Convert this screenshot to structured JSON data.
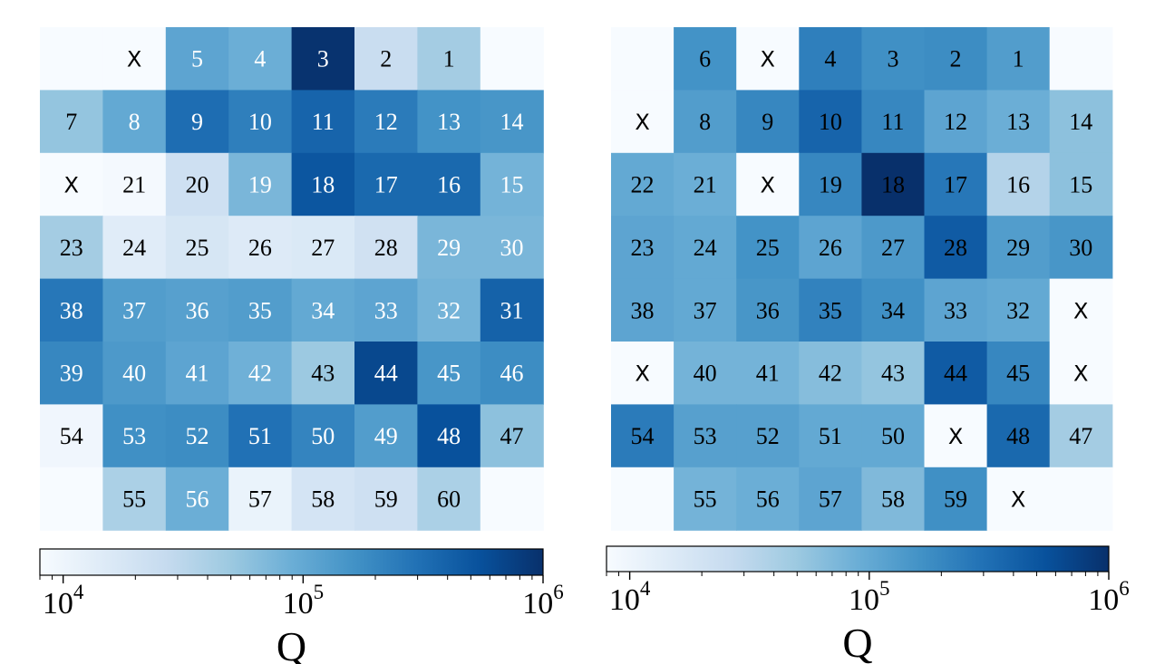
{
  "colors": {
    "cmap": [
      "#f7fbff",
      "#deebf7",
      "#c6dbef",
      "#9ecae1",
      "#6baed6",
      "#4292c6",
      "#2171b5",
      "#08519c",
      "#08306b"
    ],
    "text_dark": "#000000",
    "text_light": "#ffffff"
  },
  "chart_data": [
    {
      "type": "heatmap",
      "scale": "log",
      "colorbar_label": "Q",
      "colorbar_range": [
        8000,
        1000000
      ],
      "colorbar_ticks": [
        {
          "value": 10000,
          "base": "10",
          "exp": "4"
        },
        {
          "value": 100000,
          "base": "10",
          "exp": "5"
        },
        {
          "value": 1000000,
          "base": "10",
          "exp": "6"
        }
      ],
      "rows": 8,
      "cols": 8,
      "cells": [
        [
          null,
          {
            "t": "X",
            "q": null
          },
          {
            "t": "5",
            "q": 110000
          },
          {
            "t": "4",
            "q": 90000
          },
          {
            "t": "3",
            "q": 950000
          },
          {
            "t": "2",
            "q": 25000
          },
          {
            "t": "1",
            "q": 45000
          },
          null
        ],
        [
          {
            "t": "7",
            "q": 55000
          },
          {
            "t": "8",
            "q": 100000
          },
          {
            "t": "9",
            "q": 320000
          },
          {
            "t": "10",
            "q": 230000
          },
          {
            "t": "11",
            "q": 380000
          },
          {
            "t": "12",
            "q": 250000
          },
          {
            "t": "13",
            "q": 160000
          },
          {
            "t": "14",
            "q": 150000
          }
        ],
        [
          {
            "t": "X",
            "q": null
          },
          {
            "t": "21",
            "q": 8500
          },
          {
            "t": "20",
            "q": 22000
          },
          {
            "t": "19",
            "q": 75000
          },
          {
            "t": "18",
            "q": 500000
          },
          {
            "t": "17",
            "q": 350000
          },
          {
            "t": "16",
            "q": 350000
          },
          {
            "t": "15",
            "q": 80000
          }
        ],
        [
          {
            "t": "23",
            "q": 45000
          },
          {
            "t": "24",
            "q": 14000
          },
          {
            "t": "25",
            "q": 18000
          },
          {
            "t": "26",
            "q": 15000
          },
          {
            "t": "27",
            "q": 16000
          },
          {
            "t": "28",
            "q": 21000
          },
          {
            "t": "29",
            "q": 75000
          },
          {
            "t": "30",
            "q": 75000
          }
        ],
        [
          {
            "t": "38",
            "q": 270000
          },
          {
            "t": "37",
            "q": 130000
          },
          {
            "t": "36",
            "q": 120000
          },
          {
            "t": "35",
            "q": 130000
          },
          {
            "t": "34",
            "q": 100000
          },
          {
            "t": "33",
            "q": 110000
          },
          {
            "t": "32",
            "q": 80000
          },
          {
            "t": "31",
            "q": 400000
          }
        ],
        [
          {
            "t": "39",
            "q": 200000
          },
          {
            "t": "40",
            "q": 140000
          },
          {
            "t": "41",
            "q": 110000
          },
          {
            "t": "42",
            "q": 85000
          },
          {
            "t": "43",
            "q": 50000
          },
          {
            "t": "44",
            "q": 650000
          },
          {
            "t": "45",
            "q": 150000
          },
          {
            "t": "46",
            "q": 180000
          }
        ],
        [
          {
            "t": "54",
            "q": 9500
          },
          {
            "t": "53",
            "q": 170000
          },
          {
            "t": "52",
            "q": 180000
          },
          {
            "t": "51",
            "q": 300000
          },
          {
            "t": "50",
            "q": 210000
          },
          {
            "t": "49",
            "q": 130000
          },
          {
            "t": "48",
            "q": 550000
          },
          {
            "t": "47",
            "q": 60000
          }
        ],
        [
          null,
          {
            "t": "55",
            "q": 40000
          },
          {
            "t": "56",
            "q": 90000
          },
          {
            "t": "57",
            "q": 11000
          },
          {
            "t": "58",
            "q": 19000
          },
          {
            "t": "59",
            "q": 22000
          },
          {
            "t": "60",
            "q": 40000
          },
          null
        ]
      ]
    },
    {
      "type": "heatmap",
      "scale": "log",
      "colorbar_label": "Q",
      "colorbar_range": [
        8000,
        1000000
      ],
      "colorbar_ticks": [
        {
          "value": 10000,
          "base": "10",
          "exp": "4"
        },
        {
          "value": 100000,
          "base": "10",
          "exp": "5"
        },
        {
          "value": 1000000,
          "base": "10",
          "exp": "6"
        }
      ],
      "rows": 8,
      "cols": 8,
      "cells": [
        [
          null,
          {
            "t": "6",
            "q": 160000
          },
          {
            "t": "X",
            "q": null
          },
          {
            "t": "4",
            "q": 230000
          },
          {
            "t": "3",
            "q": 170000
          },
          {
            "t": "2",
            "q": 180000
          },
          {
            "t": "1",
            "q": 130000
          },
          null
        ],
        [
          {
            "t": "X",
            "q": null
          },
          {
            "t": "8",
            "q": 130000
          },
          {
            "t": "9",
            "q": 200000
          },
          {
            "t": "10",
            "q": 380000
          },
          {
            "t": "11",
            "q": 200000
          },
          {
            "t": "12",
            "q": 110000
          },
          {
            "t": "13",
            "q": 90000
          },
          {
            "t": "14",
            "q": 60000
          }
        ],
        [
          {
            "t": "22",
            "q": 100000
          },
          {
            "t": "21",
            "q": 90000
          },
          {
            "t": "X",
            "q": null
          },
          {
            "t": "19",
            "q": 200000
          },
          {
            "t": "18",
            "q": 1000000
          },
          {
            "t": "17",
            "q": 270000
          },
          {
            "t": "16",
            "q": 35000
          },
          {
            "t": "15",
            "q": 60000
          }
        ],
        [
          {
            "t": "23",
            "q": 110000
          },
          {
            "t": "24",
            "q": 100000
          },
          {
            "t": "25",
            "q": 160000
          },
          {
            "t": "26",
            "q": 110000
          },
          {
            "t": "27",
            "q": 140000
          },
          {
            "t": "28",
            "q": 450000
          },
          {
            "t": "29",
            "q": 130000
          },
          {
            "t": "30",
            "q": 150000
          }
        ],
        [
          {
            "t": "38",
            "q": 110000
          },
          {
            "t": "37",
            "q": 100000
          },
          {
            "t": "36",
            "q": 150000
          },
          {
            "t": "35",
            "q": 220000
          },
          {
            "t": "34",
            "q": 170000
          },
          {
            "t": "33",
            "q": 110000
          },
          {
            "t": "32",
            "q": 100000
          },
          {
            "t": "X",
            "q": null
          }
        ],
        [
          {
            "t": "X",
            "q": null
          },
          {
            "t": "40",
            "q": 80000
          },
          {
            "t": "41",
            "q": 80000
          },
          {
            "t": "42",
            "q": 65000
          },
          {
            "t": "43",
            "q": 55000
          },
          {
            "t": "44",
            "q": 450000
          },
          {
            "t": "45",
            "q": 200000
          },
          {
            "t": "X",
            "q": null
          }
        ],
        [
          {
            "t": "54",
            "q": 250000
          },
          {
            "t": "53",
            "q": 120000
          },
          {
            "t": "52",
            "q": 120000
          },
          {
            "t": "51",
            "q": 100000
          },
          {
            "t": "50",
            "q": 100000
          },
          {
            "t": "X",
            "q": null
          },
          {
            "t": "48",
            "q": 350000
          },
          {
            "t": "47",
            "q": 45000
          }
        ],
        [
          null,
          {
            "t": "55",
            "q": 80000
          },
          {
            "t": "56",
            "q": 90000
          },
          {
            "t": "57",
            "q": 110000
          },
          {
            "t": "58",
            "q": 70000
          },
          {
            "t": "59",
            "q": 170000
          },
          {
            "t": "X",
            "q": null
          },
          null
        ]
      ]
    }
  ]
}
